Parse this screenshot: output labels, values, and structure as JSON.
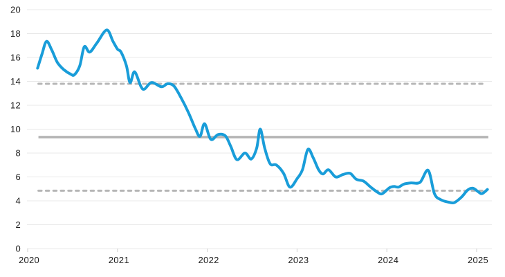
{
  "page": {
    "background": "#ffffff"
  },
  "chart_data": {
    "type": "line",
    "title": "",
    "xlabel": "",
    "ylabel": "",
    "xlim": [
      2020,
      2025.17
    ],
    "ylim": [
      0,
      20
    ],
    "grid": "horizontal",
    "legend": "none",
    "x_tick_labels": [
      "2020",
      "2021",
      "2022",
      "2023",
      "2024",
      "2025"
    ],
    "x_tick_values": [
      2020,
      2021,
      2022,
      2023,
      2024,
      2025
    ],
    "y_tick_labels": [
      "0",
      "2",
      "4",
      "6",
      "8",
      "10",
      "12",
      "14",
      "16",
      "18",
      "20"
    ],
    "y_tick_values": [
      0,
      2,
      4,
      6,
      8,
      10,
      12,
      14,
      16,
      18,
      20
    ],
    "colors": {
      "series_blue": "#199dd9",
      "gridline": "#e8e8e8",
      "axis_tick": "#cfcfcf",
      "reference_solid": "#b3b3b3",
      "reference_dashed": "#b6b6b6",
      "label_text": "#1d1d1d"
    },
    "reference_lines": [
      {
        "name": "upper-band-dashed",
        "style": "dashed",
        "value": 13.8,
        "x_start": 2020.12,
        "x_end": 2025.11
      },
      {
        "name": "mean-solid",
        "style": "solid",
        "value": 9.33,
        "x_start": 2020.12,
        "x_end": 2025.13
      },
      {
        "name": "lower-band-dashed",
        "style": "dashed",
        "value": 4.85,
        "x_start": 2020.12,
        "x_end": 2025.11
      }
    ],
    "series": [
      {
        "name": "main-series",
        "color": "#199dd9",
        "points": [
          [
            2020.11,
            15.1
          ],
          [
            2020.16,
            16.3
          ],
          [
            2020.21,
            17.35
          ],
          [
            2020.27,
            16.6
          ],
          [
            2020.33,
            15.6
          ],
          [
            2020.4,
            15.0
          ],
          [
            2020.48,
            14.6
          ],
          [
            2020.52,
            14.55
          ],
          [
            2020.58,
            15.3
          ],
          [
            2020.63,
            16.9
          ],
          [
            2020.69,
            16.45
          ],
          [
            2020.77,
            17.2
          ],
          [
            2020.88,
            18.3
          ],
          [
            2020.95,
            17.35
          ],
          [
            2021.0,
            16.7
          ],
          [
            2021.04,
            16.45
          ],
          [
            2021.1,
            15.3
          ],
          [
            2021.14,
            13.9
          ],
          [
            2021.19,
            14.8
          ],
          [
            2021.26,
            13.6
          ],
          [
            2021.3,
            13.35
          ],
          [
            2021.38,
            13.9
          ],
          [
            2021.49,
            13.55
          ],
          [
            2021.56,
            13.8
          ],
          [
            2021.63,
            13.6
          ],
          [
            2021.71,
            12.6
          ],
          [
            2021.79,
            11.4
          ],
          [
            2021.87,
            10.0
          ],
          [
            2021.92,
            9.4
          ],
          [
            2021.97,
            10.45
          ],
          [
            2022.04,
            9.15
          ],
          [
            2022.12,
            9.55
          ],
          [
            2022.2,
            9.45
          ],
          [
            2022.26,
            8.6
          ],
          [
            2022.33,
            7.45
          ],
          [
            2022.42,
            8.0
          ],
          [
            2022.49,
            7.5
          ],
          [
            2022.55,
            8.4
          ],
          [
            2022.59,
            10.0
          ],
          [
            2022.64,
            8.4
          ],
          [
            2022.7,
            7.1
          ],
          [
            2022.77,
            7.0
          ],
          [
            2022.85,
            6.3
          ],
          [
            2022.92,
            5.15
          ],
          [
            2023.0,
            5.85
          ],
          [
            2023.06,
            6.6
          ],
          [
            2023.12,
            8.3
          ],
          [
            2023.18,
            7.6
          ],
          [
            2023.24,
            6.6
          ],
          [
            2023.29,
            6.25
          ],
          [
            2023.35,
            6.6
          ],
          [
            2023.43,
            6.0
          ],
          [
            2023.51,
            6.2
          ],
          [
            2023.59,
            6.3
          ],
          [
            2023.66,
            5.8
          ],
          [
            2023.74,
            5.65
          ],
          [
            2023.82,
            5.15
          ],
          [
            2023.9,
            4.7
          ],
          [
            2023.95,
            4.6
          ],
          [
            2024.03,
            5.1
          ],
          [
            2024.08,
            5.2
          ],
          [
            2024.13,
            5.15
          ],
          [
            2024.19,
            5.4
          ],
          [
            2024.27,
            5.5
          ],
          [
            2024.37,
            5.55
          ],
          [
            2024.46,
            6.55
          ],
          [
            2024.53,
            4.6
          ],
          [
            2024.6,
            4.1
          ],
          [
            2024.68,
            3.9
          ],
          [
            2024.75,
            3.85
          ],
          [
            2024.83,
            4.3
          ],
          [
            2024.9,
            4.9
          ],
          [
            2024.96,
            5.05
          ],
          [
            2025.02,
            4.75
          ],
          [
            2025.06,
            4.6
          ],
          [
            2025.12,
            4.95
          ]
        ]
      }
    ]
  }
}
